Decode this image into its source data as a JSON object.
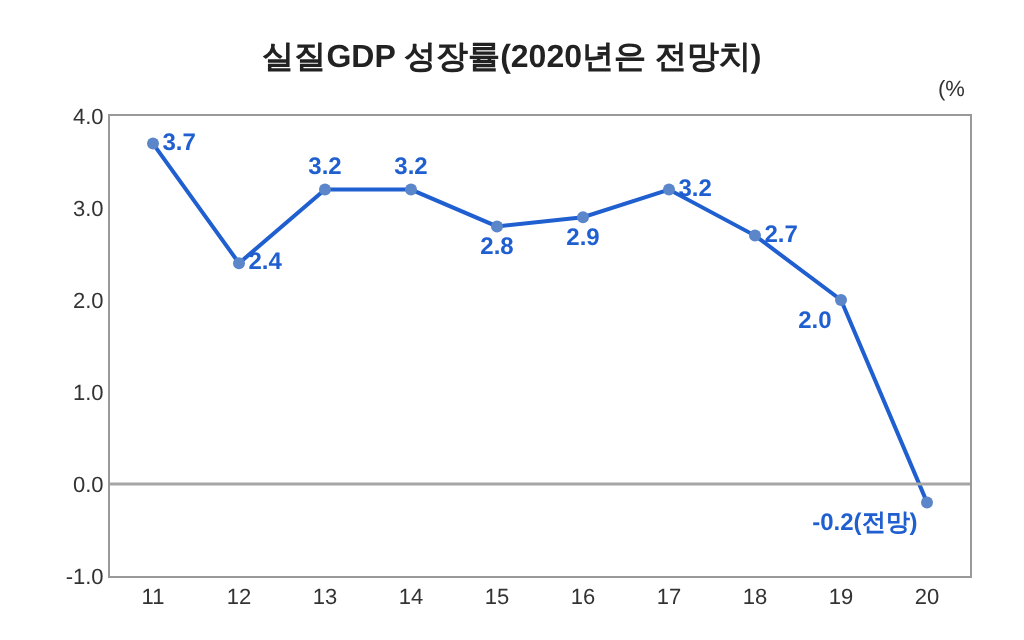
{
  "chart_data": {
    "type": "line",
    "title": "실질GDP 성장률(2020년은 전망치)",
    "categories": [
      "11",
      "12",
      "13",
      "14",
      "15",
      "16",
      "17",
      "18",
      "19",
      "20"
    ],
    "series": [
      {
        "color": "#1f5fd0",
        "values": [
          3.7,
          2.4,
          3.2,
          3.2,
          2.8,
          2.9,
          3.2,
          2.7,
          2.0,
          -0.2
        ],
        "value_labels": [
          "3.7",
          "2.4",
          "3.2",
          "3.2",
          "2.8",
          "2.9",
          "3.2",
          "2.7",
          "2.0",
          "-0.2(전망)"
        ]
      }
    ],
    "ylim": [
      -1,
      4
    ],
    "yticks": [
      {
        "value": -1,
        "label": "-1.0"
      },
      {
        "value": 0,
        "label": "0.0"
      },
      {
        "value": 1,
        "label": "1.0"
      },
      {
        "value": 2,
        "label": "2.0"
      },
      {
        "value": 3,
        "label": "3.0"
      },
      {
        "value": 4,
        "label": "4.0"
      }
    ],
    "ref_lines": [
      {
        "axis": "y",
        "value": 0,
        "color": "#a6a6a6"
      }
    ],
    "annotations": [
      "(%"
    ],
    "marker": "circle",
    "line_style": "solid",
    "grid": false
  }
}
